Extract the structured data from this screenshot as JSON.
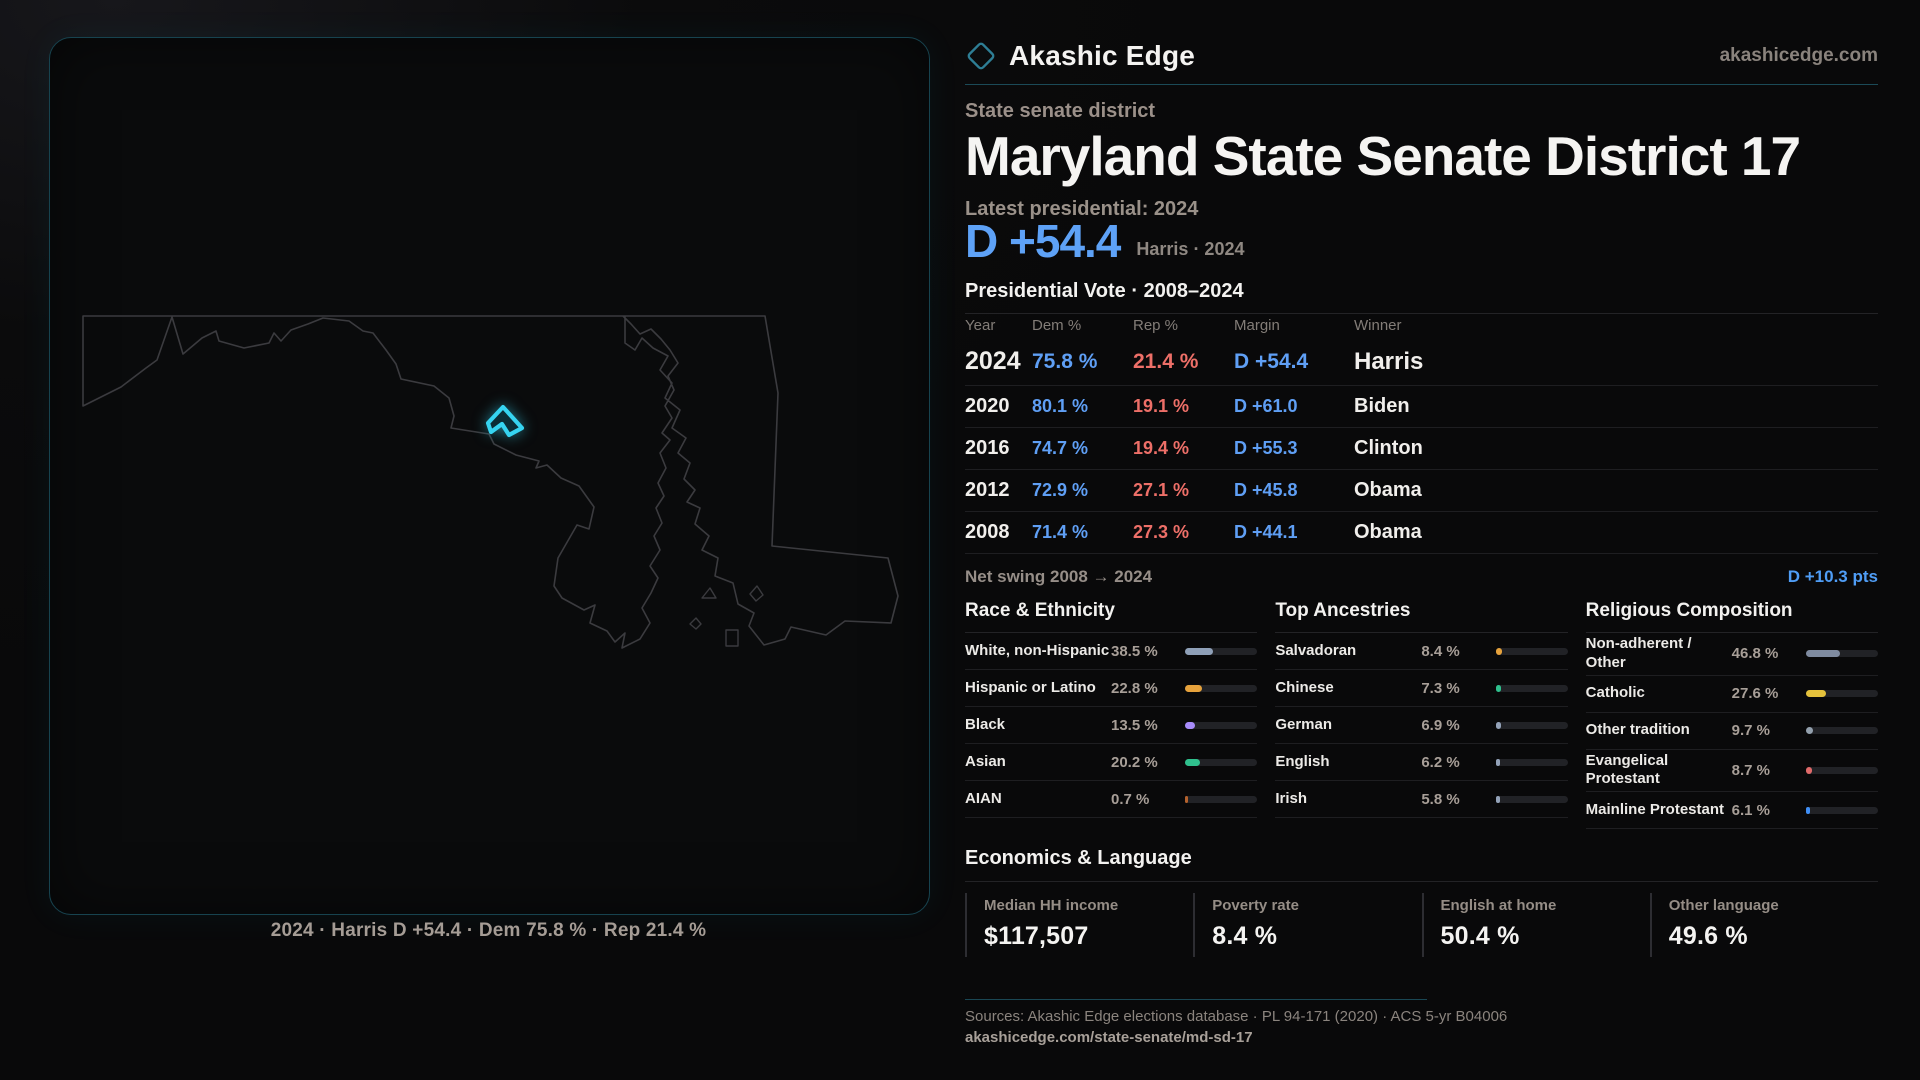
{
  "brand": {
    "name": "Akashic Edge",
    "domain": "akashicedge.com",
    "icon": "diamond-icon",
    "accent_teal": "#1b4a57"
  },
  "page": {
    "eyebrow": "State senate district",
    "title": "Maryland State Senate District 17"
  },
  "headline": {
    "label": "Latest presidential: 2024",
    "margin": "D +54.4",
    "sub": "Harris · 2024",
    "margin_color": "#5ea2f7"
  },
  "table": {
    "title": "Presidential Vote · 2008–2024",
    "columns": [
      "Year",
      "Dem %",
      "Rep %",
      "Margin",
      "Winner"
    ],
    "rows": [
      {
        "year": "2024",
        "dem": "75.8 %",
        "rep": "21.4 %",
        "margin": "D +54.4",
        "winner": "Harris",
        "highlight": true
      },
      {
        "year": "2020",
        "dem": "80.1 %",
        "rep": "19.1 %",
        "margin": "D +61.0",
        "winner": "Biden",
        "highlight": false
      },
      {
        "year": "2016",
        "dem": "74.7 %",
        "rep": "19.4 %",
        "margin": "D +55.3",
        "winner": "Clinton",
        "highlight": false
      },
      {
        "year": "2012",
        "dem": "72.9 %",
        "rep": "27.1 %",
        "margin": "D +45.8",
        "winner": "Obama",
        "highlight": false
      },
      {
        "year": "2008",
        "dem": "71.4 %",
        "rep": "27.3 %",
        "margin": "D +44.1",
        "winner": "Obama",
        "highlight": false
      }
    ],
    "net_swing_label": "Net swing 2008 → 2024",
    "net_swing_value": "D +10.3 pts",
    "dem_color": "#5f9ff5",
    "rep_color": "#ed6f68"
  },
  "demographics": [
    {
      "title": "Race & Ethnicity",
      "rows": [
        {
          "label": "White, non-Hispanic",
          "value": "38.5 %",
          "pct": 38.5,
          "color": "#8fa0b8"
        },
        {
          "label": "Hispanic or Latino",
          "value": "22.8 %",
          "pct": 22.8,
          "color": "#e6a23c"
        },
        {
          "label": "Black",
          "value": "13.5 %",
          "pct": 13.5,
          "color": "#a78bfa"
        },
        {
          "label": "Asian",
          "value": "20.2 %",
          "pct": 20.2,
          "color": "#2fc08d"
        },
        {
          "label": "AIAN",
          "value": "0.7 %",
          "pct": 0.7,
          "color": "#b4622d"
        }
      ]
    },
    {
      "title": "Top Ancestries",
      "rows": [
        {
          "label": "Salvadoran",
          "value": "8.4 %",
          "pct": 8.4,
          "color": "#e6a23c"
        },
        {
          "label": "Chinese",
          "value": "7.3 %",
          "pct": 7.3,
          "color": "#2fc08d"
        },
        {
          "label": "German",
          "value": "6.9 %",
          "pct": 6.9,
          "color": "#93a2b8"
        },
        {
          "label": "English",
          "value": "6.2 %",
          "pct": 6.2,
          "color": "#93a2b8"
        },
        {
          "label": "Irish",
          "value": "5.8 %",
          "pct": 5.8,
          "color": "#93a2b8"
        }
      ]
    },
    {
      "title": "Religious Composition",
      "rows": [
        {
          "label": "Non-adherent / Other",
          "value": "46.8 %",
          "pct": 46.8,
          "color": "#7f8ba0"
        },
        {
          "label": "Catholic",
          "value": "27.6 %",
          "pct": 27.6,
          "color": "#e5c23c"
        },
        {
          "label": "Other tradition",
          "value": "9.7 %",
          "pct": 9.7,
          "color": "#93a0ad"
        },
        {
          "label": "Evangelical Protestant",
          "value": "8.7 %",
          "pct": 8.7,
          "color": "#e06a6a"
        },
        {
          "label": "Mainline Protestant",
          "value": "6.1 %",
          "pct": 6.1,
          "color": "#3f8ef5"
        }
      ]
    }
  ],
  "economics": {
    "title": "Economics & Language",
    "stats": [
      {
        "label": "Median HH income",
        "value": "$117,507"
      },
      {
        "label": "Poverty rate",
        "value": "8.4 %"
      },
      {
        "label": "English at home",
        "value": "50.4 %"
      },
      {
        "label": "Other language",
        "value": "49.6 %"
      }
    ]
  },
  "footer": {
    "sources": "Sources: Akashic Edge elections database · PL 94-171 (2020) · ACS 5-yr B04006",
    "permalink": "akashicedge.com/state-senate/md-sd-17"
  },
  "map": {
    "caption": "2024 · Harris D +54.4 · Dem 75.8 % · Rep 21.4 %",
    "district_color": "#36d4f1",
    "outline_color": "#3b3b3f"
  }
}
